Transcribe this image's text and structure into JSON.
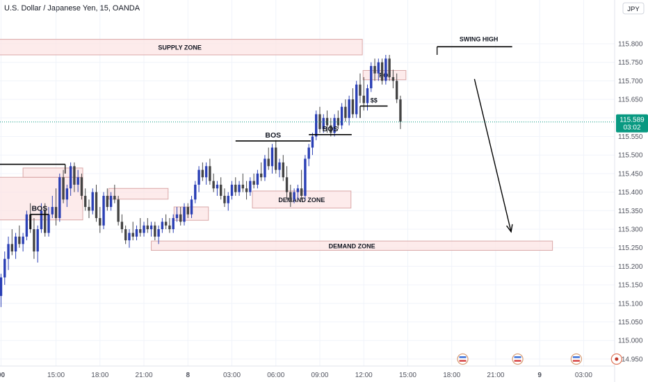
{
  "header": {
    "symbol_title": "U.S. Dollar / Japanese Yen, 15, OANDA",
    "currency_badge": "JPY"
  },
  "colors": {
    "up": "#2a3fb5",
    "down": "#444444",
    "zone_fill": "#fce4e4",
    "zone_stroke": "#d9a7a7",
    "current_bg": "#089981",
    "grid": "#f0f3fa",
    "text": "#131722",
    "axis_text": "#50535e"
  },
  "current_price": {
    "value": "115.589",
    "countdown": "03:02"
  },
  "chart_data": {
    "type": "candlestick",
    "ylim": [
      114.925,
      116.0
    ],
    "yticks": [
      "115.800",
      "115.750",
      "115.700",
      "115.650",
      "115.600",
      "115.550",
      "115.500",
      "115.450",
      "115.400",
      "115.350",
      "115.300",
      "115.250",
      "115.200",
      "115.150",
      "115.100",
      "115.050",
      "115.000",
      "114.950"
    ],
    "xticks": [
      {
        "label": "00",
        "bar": 0
      },
      {
        "label": "15:00",
        "bar": 15
      },
      {
        "label": "18:00",
        "bar": 27
      },
      {
        "label": "21:00",
        "bar": 39
      },
      {
        "label": "8",
        "bar": 51
      },
      {
        "label": "03:00",
        "bar": 63
      },
      {
        "label": "06:00",
        "bar": 75
      },
      {
        "label": "09:00",
        "bar": 87
      },
      {
        "label": "12:00",
        "bar": 99
      },
      {
        "label": "15:00",
        "bar": 111
      },
      {
        "label": "18:00",
        "bar": 123
      },
      {
        "label": "21:00",
        "bar": 135
      },
      {
        "label": "9",
        "bar": 147
      },
      {
        "label": "03:00",
        "bar": 159
      }
    ],
    "candles": [
      [
        115.12,
        115.18,
        115.09,
        115.17
      ],
      [
        115.17,
        115.24,
        115.15,
        115.22
      ],
      [
        115.22,
        115.28,
        115.19,
        115.26
      ],
      [
        115.26,
        115.3,
        115.23,
        115.24
      ],
      [
        115.24,
        115.29,
        115.22,
        115.28
      ],
      [
        115.28,
        115.31,
        115.25,
        115.26
      ],
      [
        115.26,
        115.29,
        115.24,
        115.28
      ],
      [
        115.28,
        115.35,
        115.27,
        115.34
      ],
      [
        115.34,
        115.37,
        115.29,
        115.3
      ],
      [
        115.3,
        115.33,
        115.22,
        115.24
      ],
      [
        115.24,
        115.31,
        115.21,
        115.3
      ],
      [
        115.3,
        115.37,
        115.29,
        115.35
      ],
      [
        115.35,
        115.37,
        115.28,
        115.29
      ],
      [
        115.29,
        115.36,
        115.28,
        115.34
      ],
      [
        115.34,
        115.39,
        115.33,
        115.36
      ],
      [
        115.36,
        115.41,
        115.31,
        115.33
      ],
      [
        115.33,
        115.45,
        115.32,
        115.44
      ],
      [
        115.44,
        115.46,
        115.37,
        115.38
      ],
      [
        115.38,
        115.42,
        115.36,
        115.41
      ],
      [
        115.41,
        115.48,
        115.39,
        115.47
      ],
      [
        115.47,
        115.48,
        115.4,
        115.42
      ],
      [
        115.42,
        115.46,
        115.4,
        115.44
      ],
      [
        115.44,
        115.45,
        115.38,
        115.39
      ],
      [
        115.39,
        115.41,
        115.35,
        115.36
      ],
      [
        115.36,
        115.38,
        115.33,
        115.35
      ],
      [
        115.35,
        115.41,
        115.34,
        115.4
      ],
      [
        115.4,
        115.42,
        115.32,
        115.33
      ],
      [
        115.33,
        115.36,
        115.29,
        115.31
      ],
      [
        115.31,
        115.4,
        115.3,
        115.39
      ],
      [
        115.39,
        115.41,
        115.35,
        115.36
      ],
      [
        115.36,
        115.4,
        115.35,
        115.39
      ],
      [
        115.39,
        115.42,
        115.37,
        115.38
      ],
      [
        115.38,
        115.39,
        115.31,
        115.32
      ],
      [
        115.32,
        115.34,
        115.29,
        115.3
      ],
      [
        115.3,
        115.31,
        115.26,
        115.27
      ],
      [
        115.27,
        115.3,
        115.25,
        115.29
      ],
      [
        115.29,
        115.32,
        115.27,
        115.28
      ],
      [
        115.28,
        115.31,
        115.27,
        115.3
      ],
      [
        115.3,
        115.33,
        115.28,
        115.29
      ],
      [
        115.29,
        115.32,
        115.28,
        115.31
      ],
      [
        115.31,
        115.33,
        115.29,
        115.3
      ],
      [
        115.3,
        115.32,
        115.28,
        115.31
      ],
      [
        115.31,
        115.32,
        115.27,
        115.28
      ],
      [
        115.28,
        115.31,
        115.26,
        115.3
      ],
      [
        115.3,
        115.33,
        115.29,
        115.32
      ],
      [
        115.32,
        115.34,
        115.3,
        115.31
      ],
      [
        115.31,
        115.33,
        115.29,
        115.3
      ],
      [
        115.3,
        115.34,
        115.29,
        115.33
      ],
      [
        115.33,
        115.36,
        115.32,
        115.34
      ],
      [
        115.34,
        115.36,
        115.31,
        115.32
      ],
      [
        115.32,
        115.37,
        115.31,
        115.36
      ],
      [
        115.36,
        115.37,
        115.33,
        115.34
      ],
      [
        115.34,
        115.39,
        115.33,
        115.38
      ],
      [
        115.38,
        115.43,
        115.37,
        115.42
      ],
      [
        115.42,
        115.47,
        115.4,
        115.46
      ],
      [
        115.46,
        115.48,
        115.43,
        115.44
      ],
      [
        115.44,
        115.48,
        115.42,
        115.47
      ],
      [
        115.47,
        115.49,
        115.42,
        115.43
      ],
      [
        115.43,
        115.45,
        115.4,
        115.41
      ],
      [
        115.41,
        115.43,
        115.39,
        115.42
      ],
      [
        115.42,
        115.44,
        115.38,
        115.39
      ],
      [
        115.39,
        115.41,
        115.36,
        115.37
      ],
      [
        115.37,
        115.4,
        115.35,
        115.39
      ],
      [
        115.39,
        115.43,
        115.38,
        115.42
      ],
      [
        115.42,
        115.44,
        115.39,
        115.4
      ],
      [
        115.4,
        115.43,
        115.39,
        115.42
      ],
      [
        115.42,
        115.45,
        115.4,
        115.41
      ],
      [
        115.41,
        115.43,
        115.38,
        115.4
      ],
      [
        115.4,
        115.44,
        115.39,
        115.43
      ],
      [
        115.43,
        115.45,
        115.41,
        115.42
      ],
      [
        115.42,
        115.46,
        115.41,
        115.45
      ],
      [
        115.45,
        115.48,
        115.43,
        115.44
      ],
      [
        115.44,
        115.5,
        115.43,
        115.49
      ],
      [
        115.49,
        115.52,
        115.46,
        115.47
      ],
      [
        115.47,
        115.53,
        115.45,
        115.52
      ],
      [
        115.52,
        115.54,
        115.45,
        115.46
      ],
      [
        115.46,
        115.49,
        115.44,
        115.48
      ],
      [
        115.48,
        115.5,
        115.43,
        115.44
      ],
      [
        115.44,
        115.47,
        115.38,
        115.4
      ],
      [
        115.4,
        115.42,
        115.36,
        115.38
      ],
      [
        115.38,
        115.41,
        115.37,
        115.4
      ],
      [
        115.4,
        115.42,
        115.38,
        115.41
      ],
      [
        115.41,
        115.46,
        115.38,
        115.39
      ],
      [
        115.39,
        115.5,
        115.38,
        115.49
      ],
      [
        115.49,
        115.53,
        115.47,
        115.52
      ],
      [
        115.52,
        115.56,
        115.5,
        115.55
      ],
      [
        115.55,
        115.62,
        115.54,
        115.61
      ],
      [
        115.61,
        115.63,
        115.56,
        115.57
      ],
      [
        115.57,
        115.61,
        115.56,
        115.6
      ],
      [
        115.6,
        115.62,
        115.56,
        115.58
      ],
      [
        115.58,
        115.6,
        115.55,
        115.56
      ],
      [
        115.56,
        115.61,
        115.55,
        115.6
      ],
      [
        115.6,
        115.62,
        115.57,
        115.58
      ],
      [
        115.58,
        115.64,
        115.57,
        115.63
      ],
      [
        115.63,
        115.65,
        115.59,
        115.6
      ],
      [
        115.6,
        115.66,
        115.58,
        115.65
      ],
      [
        115.65,
        115.68,
        115.6,
        115.61
      ],
      [
        115.61,
        115.7,
        115.6,
        115.69
      ],
      [
        115.69,
        115.72,
        115.64,
        115.66
      ],
      [
        115.66,
        115.71,
        115.62,
        115.64
      ],
      [
        115.64,
        115.69,
        115.62,
        115.68
      ],
      [
        115.68,
        115.75,
        115.67,
        115.74
      ],
      [
        115.74,
        115.76,
        115.7,
        115.72
      ],
      [
        115.72,
        115.76,
        115.7,
        115.75
      ],
      [
        115.75,
        115.76,
        115.69,
        115.7
      ],
      [
        115.7,
        115.77,
        115.69,
        115.76
      ],
      [
        115.76,
        115.77,
        115.7,
        115.71
      ],
      [
        115.71,
        115.73,
        115.68,
        115.7
      ],
      [
        115.7,
        115.72,
        115.64,
        115.65
      ],
      [
        115.65,
        115.66,
        115.57,
        115.59
      ]
    ],
    "zones": [
      {
        "label": "SUPPLY ZONE",
        "x0": -1,
        "x1": 98.6,
        "y0": 115.812,
        "y1": 115.77
      },
      {
        "label": "POI",
        "x0": 98.8,
        "x1": 110.5,
        "y0": 115.728,
        "y1": 115.703
      },
      {
        "label": "DEMAND ZONE",
        "x0": 68.6,
        "x1": 95.5,
        "y0": 115.403,
        "y1": 115.357
      },
      {
        "label": "",
        "x0": 47.2,
        "x1": 56.6,
        "y0": 115.36,
        "y1": 115.324
      },
      {
        "label": "",
        "x0": 29.4,
        "x1": 45.6,
        "y0": 115.41,
        "y1": 115.381
      },
      {
        "label": "",
        "x0": -1,
        "x1": 22.3,
        "y0": 115.44,
        "y1": 115.325
      },
      {
        "label": "",
        "x0": 6,
        "x1": 22.3,
        "y0": 115.465,
        "y1": 115.44
      },
      {
        "label": "DEMAND ZONE",
        "x0": 41.0,
        "x1": 150.5,
        "y0": 115.268,
        "y1": 115.243
      }
    ],
    "annotations": [
      {
        "type": "level",
        "label": "BOS",
        "x0": 8,
        "x1": 13,
        "y": 115.34
      },
      {
        "type": "level",
        "label": "",
        "x0": -1,
        "x1": 17.5,
        "y": 115.475
      },
      {
        "type": "level",
        "label": "BOS",
        "x0": 64,
        "x1": 84.5,
        "y": 115.538
      },
      {
        "type": "level",
        "label": "BOS",
        "x0": 84,
        "x1": 95.7,
        "y": 115.555
      },
      {
        "type": "level",
        "label": "$$",
        "x0": 98,
        "x1": 105.5,
        "y": 115.632
      },
      {
        "type": "level",
        "label": "SWING HIGH",
        "x0": 119,
        "x1": 139.5,
        "y": 115.792
      }
    ],
    "arrow": {
      "from": [
        129.2,
        115.705
      ],
      "to": [
        139.2,
        115.293
      ]
    }
  },
  "event_markers": [
    {
      "bar": 126
    },
    {
      "bar": 141
    },
    {
      "bar": 157
    },
    {
      "bar": 168
    }
  ]
}
